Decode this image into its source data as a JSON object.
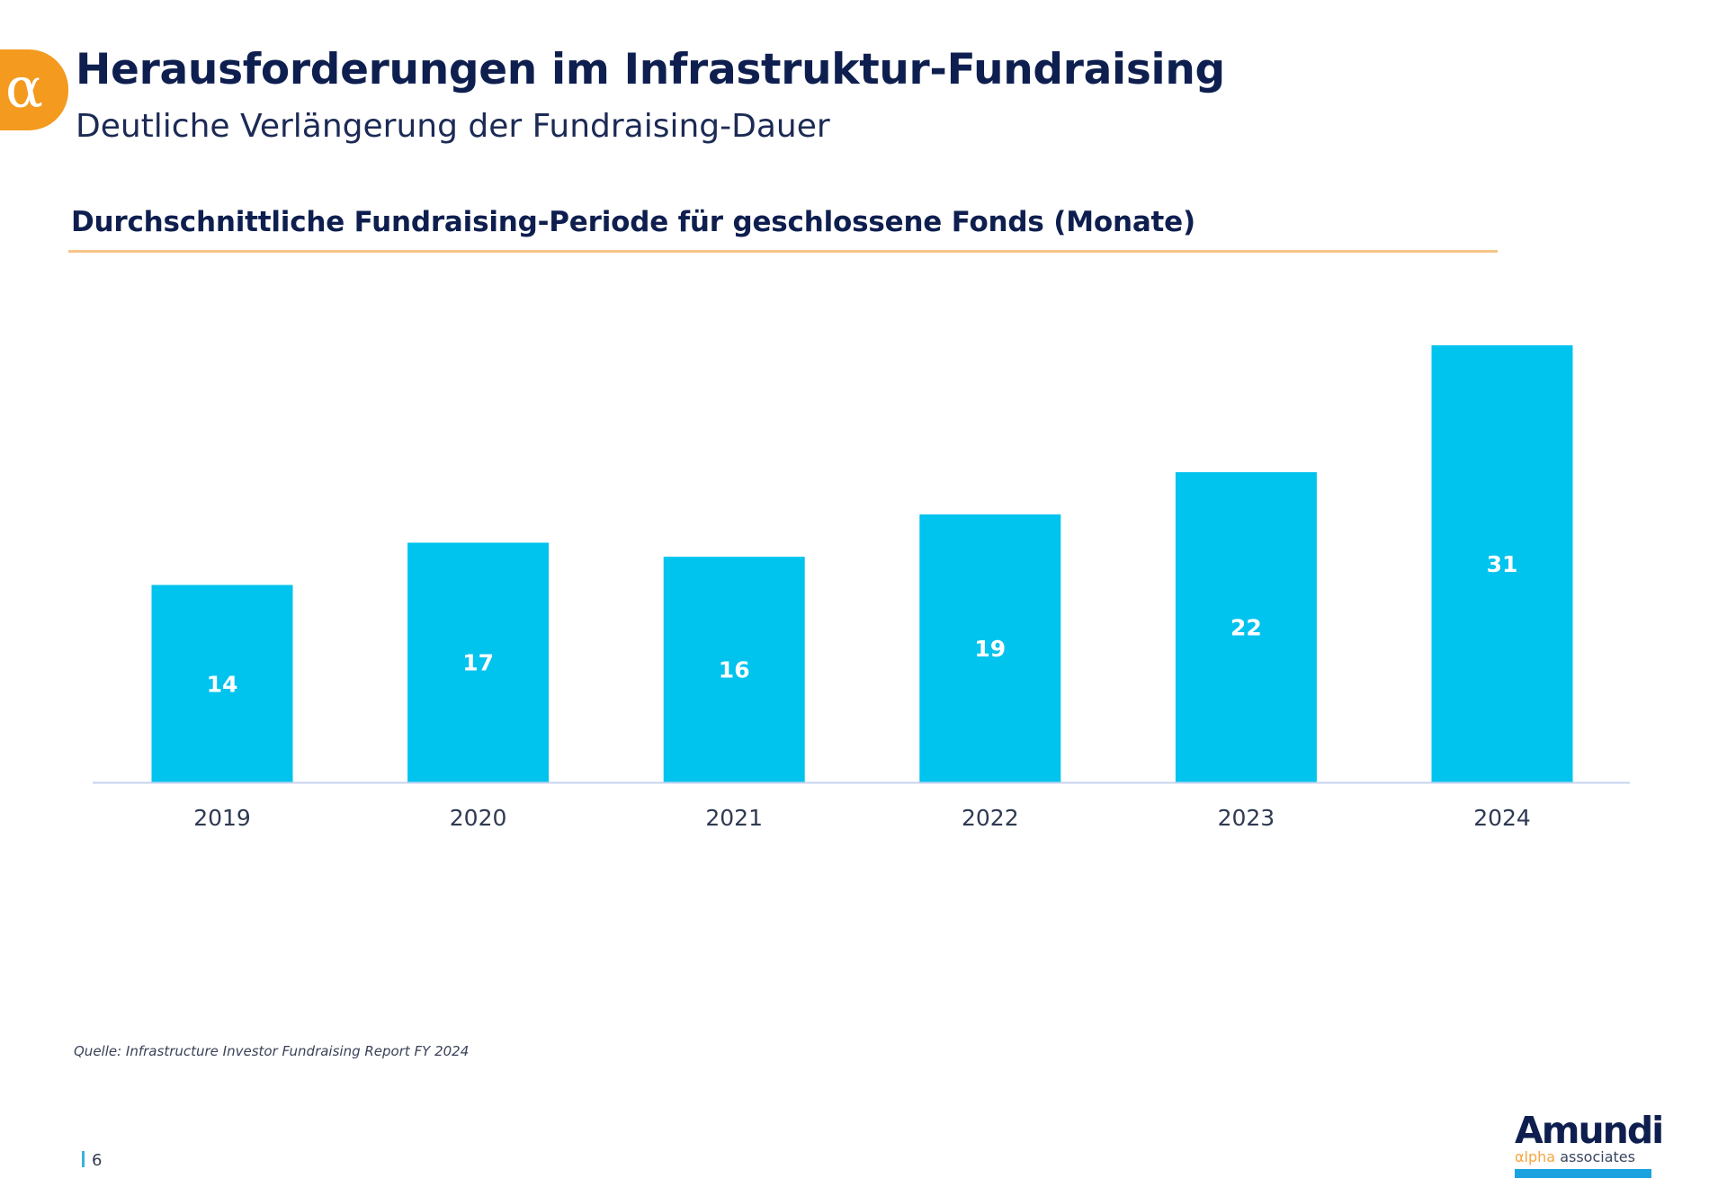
{
  "header": {
    "badge_icon": "alpha-icon",
    "badge_glyph": "α",
    "title": "Herausforderungen im Infrastruktur-Fundraising",
    "subtitle": "Deutliche Verlängerung der Fundraising-Dauer"
  },
  "colors": {
    "accent_orange": "#f39a1f",
    "rule": "#f7c58a",
    "bar": "#00c3ee",
    "navy": "#0e1f4f",
    "axis": "#c7d3ef"
  },
  "chart_data": {
    "type": "bar",
    "title": "Durchschnittliche Fundraising-Periode für geschlossene Fonds (Monate)",
    "xlabel": "",
    "ylabel": "",
    "categories": [
      "2019",
      "2020",
      "2021",
      "2022",
      "2023",
      "2024"
    ],
    "values": [
      14,
      17,
      16,
      19,
      22,
      31
    ],
    "data_labels": [
      "14",
      "17",
      "16",
      "19",
      "22",
      "31"
    ],
    "ylim": [
      0,
      31
    ],
    "grid": false,
    "legend": "none"
  },
  "footer": {
    "source": "Quelle: Infrastructure Investor Fundraising Report FY 2024",
    "page_number": "6",
    "logo": {
      "brand": "Amundi",
      "alpha": "αlpha",
      "associates": "associates"
    }
  }
}
